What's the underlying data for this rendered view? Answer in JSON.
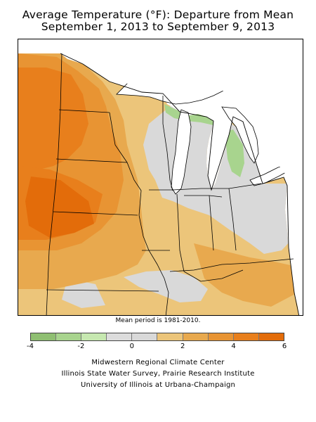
{
  "header": {
    "title_line1": "Average Temperature (°F): Departure from Mean",
    "title_line2": "September 1, 2013 to September 9, 2013"
  },
  "map": {
    "mean_period_note": "Mean period is 1981-2010.",
    "regions": [
      {
        "name": "northern-plains",
        "shade": "warm-5"
      },
      {
        "name": "upper-midwest",
        "shade": "warm-3"
      },
      {
        "name": "lake-superior-shore",
        "shade": "neutral"
      },
      {
        "name": "michigan-upper-peninsula",
        "shade": "cool-1"
      },
      {
        "name": "lower-michigan",
        "shade": "cool-1"
      },
      {
        "name": "ohio-valley",
        "shade": "warm-1"
      },
      {
        "name": "kentucky",
        "shade": "warm-3"
      }
    ]
  },
  "legend": {
    "colors": [
      "#8fbf72",
      "#a8d48e",
      "#c6e8b0",
      "#dcdcdc",
      "#d9d9d9",
      "#ecc57a",
      "#e8a94e",
      "#e89433",
      "#e87f1c",
      "#e36c0a"
    ],
    "tick_labels": [
      "-4",
      "-2",
      "0",
      "2",
      "4",
      "6"
    ]
  },
  "credits": {
    "line1": "Midwestern Regional Climate Center",
    "line2": "Illinois State Water Survey, Prairie Research Institute",
    "line3": "University of Illinois at Urbana-Champaign"
  }
}
